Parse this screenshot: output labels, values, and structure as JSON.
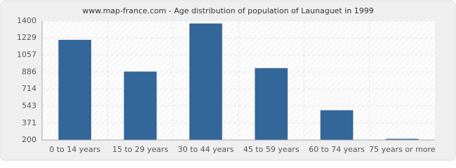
{
  "chart_data": {
    "type": "bar",
    "title": "www.map-france.com - Age distribution of population of Launaguet in 1999",
    "categories": [
      "0 to 14 years",
      "15 to 29 years",
      "30 to 44 years",
      "45 to 59 years",
      "60 to 74 years",
      "75 years or more"
    ],
    "values": [
      1210,
      890,
      1375,
      925,
      500,
      212
    ],
    "color": "#336699",
    "ylim": [
      200,
      1400
    ],
    "yticks": [
      200,
      371,
      543,
      714,
      886,
      1057,
      1229,
      1400
    ],
    "grid": true
  }
}
